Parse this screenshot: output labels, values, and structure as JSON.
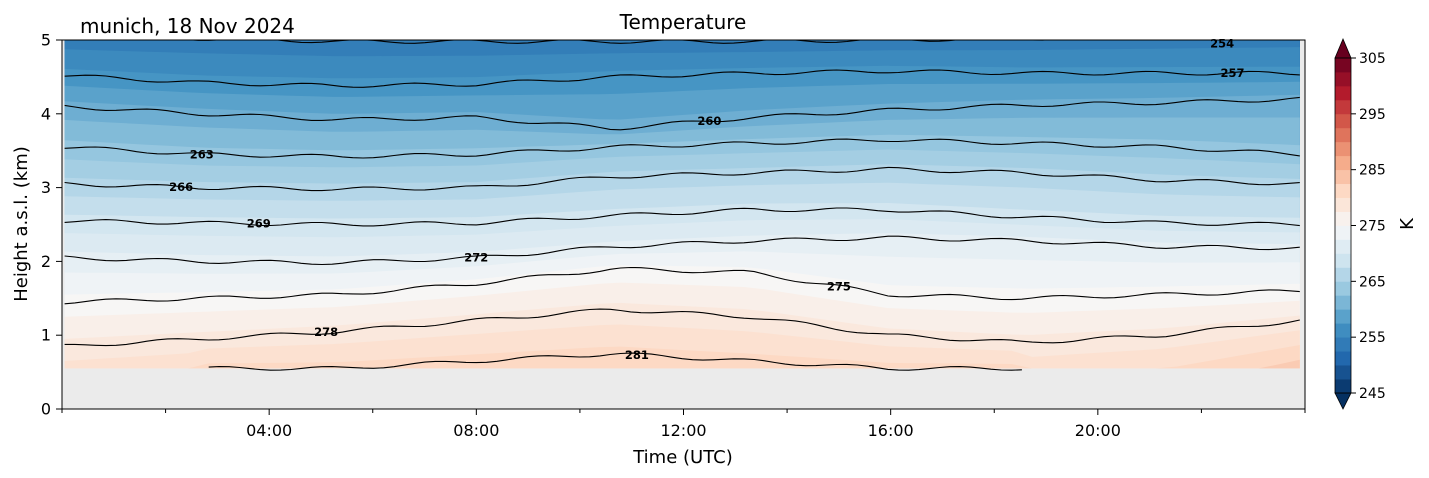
{
  "chart_data": {
    "type": "heatmap",
    "title": "Temperature",
    "subtitle": "munich, 18 Nov 2024",
    "xlabel": "Time (UTC)",
    "ylabel": "Height a.s.l. (km)",
    "x_range_hours": [
      0,
      24
    ],
    "x_ticks": [
      {
        "hour": 4,
        "label": "04:00"
      },
      {
        "hour": 8,
        "label": "08:00"
      },
      {
        "hour": 12,
        "label": "12:00"
      },
      {
        "hour": 16,
        "label": "16:00"
      },
      {
        "hour": 20,
        "label": "20:00"
      }
    ],
    "ylim": [
      0,
      5
    ],
    "y_ticks": [
      {
        "value": 0,
        "label": "0"
      },
      {
        "value": 1,
        "label": "1"
      },
      {
        "value": 2,
        "label": "2"
      },
      {
        "value": 3,
        "label": "3"
      },
      {
        "value": 4,
        "label": "4"
      },
      {
        "value": 5,
        "label": "5"
      }
    ],
    "data_bottom_km": 0.55,
    "colorbar": {
      "label": "K",
      "range": [
        245,
        305
      ],
      "ticks": [
        {
          "value": 245,
          "label": "245"
        },
        {
          "value": 255,
          "label": "255"
        },
        {
          "value": 265,
          "label": "265"
        },
        {
          "value": 275,
          "label": "275"
        },
        {
          "value": 285,
          "label": "285"
        },
        {
          "value": 295,
          "label": "295"
        },
        {
          "value": 305,
          "label": "305"
        }
      ],
      "colors": [
        "#053061",
        "#2166ac",
        "#4393c3",
        "#92c5de",
        "#d1e5f0",
        "#f7f7f7",
        "#fddbc7",
        "#f4a582",
        "#d6604d",
        "#b2182b",
        "#67001f"
      ]
    },
    "isotherms": [
      {
        "temp": 254,
        "label": "254",
        "heights_km": [
          5.05,
          5.02,
          4.98,
          4.98,
          4.98,
          4.98,
          5.0,
          5.02,
          5.05,
          5.08
        ]
      },
      {
        "temp": 257,
        "label": "257",
        "heights_km": [
          4.52,
          4.42,
          4.38,
          4.4,
          4.5,
          4.55,
          4.58,
          4.55,
          4.55,
          4.55
        ]
      },
      {
        "temp": 260,
        "label": "260",
        "heights_km": [
          4.1,
          4.0,
          3.92,
          3.95,
          3.8,
          3.95,
          4.05,
          4.12,
          4.15,
          4.2
        ]
      },
      {
        "temp": 263,
        "label": "263",
        "heights_km": [
          3.55,
          3.45,
          3.42,
          3.45,
          3.55,
          3.6,
          3.65,
          3.6,
          3.55,
          3.45
        ]
      },
      {
        "temp": 266,
        "label": "266",
        "heights_km": [
          3.05,
          3.0,
          2.98,
          3.0,
          3.15,
          3.2,
          3.25,
          3.2,
          3.1,
          3.05
        ]
      },
      {
        "temp": 269,
        "label": "269",
        "heights_km": [
          2.55,
          2.52,
          2.5,
          2.52,
          2.62,
          2.7,
          2.7,
          2.6,
          2.52,
          2.5
        ]
      },
      {
        "temp": 272,
        "label": "272",
        "heights_km": [
          2.05,
          2.0,
          1.98,
          2.05,
          2.2,
          2.28,
          2.32,
          2.28,
          2.2,
          2.18
        ]
      },
      {
        "temp": 275,
        "label": "275",
        "heights_km": [
          1.45,
          1.5,
          1.55,
          1.7,
          1.9,
          1.85,
          1.55,
          1.5,
          1.55,
          1.6
        ]
      },
      {
        "temp": 278,
        "label": "278",
        "heights_km": [
          0.85,
          0.95,
          1.05,
          1.2,
          1.35,
          1.25,
          1.0,
          0.9,
          1.0,
          1.2
        ]
      },
      {
        "temp": 281,
        "label": "281",
        "heights_km": [
          null,
          null,
          0.55,
          0.65,
          0.75,
          0.65,
          0.55,
          null,
          null,
          null
        ]
      }
    ]
  }
}
